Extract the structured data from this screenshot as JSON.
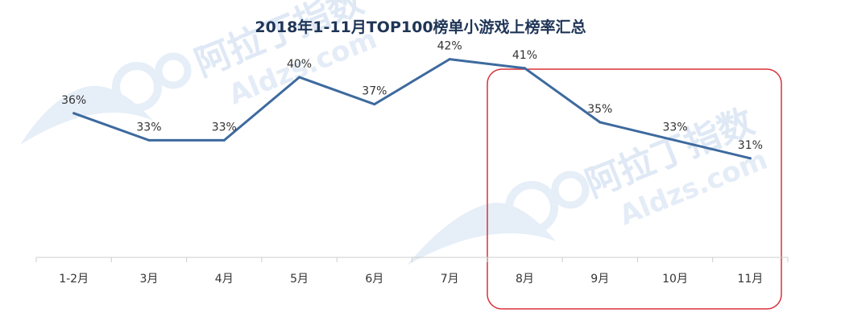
{
  "chart_data": {
    "type": "line",
    "title": "2018年1-11月TOP100榜单小游戏上榜率汇总",
    "categories": [
      "1-2月",
      "3月",
      "4月",
      "5月",
      "6月",
      "7月",
      "8月",
      "9月",
      "10月",
      "11月"
    ],
    "series": [
      {
        "values": [
          36,
          33,
          33,
          40,
          37,
          42,
          41,
          35,
          33,
          31
        ],
        "labels": [
          "36%",
          "33%",
          "33%",
          "40%",
          "37%",
          "42%",
          "41%",
          "35%",
          "33%",
          "31%"
        ],
        "color": "#3d6a9e"
      }
    ],
    "ylim": [
      20,
      45
    ],
    "y_unit": "%",
    "grid": false,
    "legend": "none",
    "highlight": {
      "from_category": "8月",
      "to_category": "11月",
      "color": "#d9303a"
    }
  },
  "watermark": {
    "brand": "阿拉丁指数",
    "site": "Aldzs.com",
    "color": "#dfe8f5"
  }
}
